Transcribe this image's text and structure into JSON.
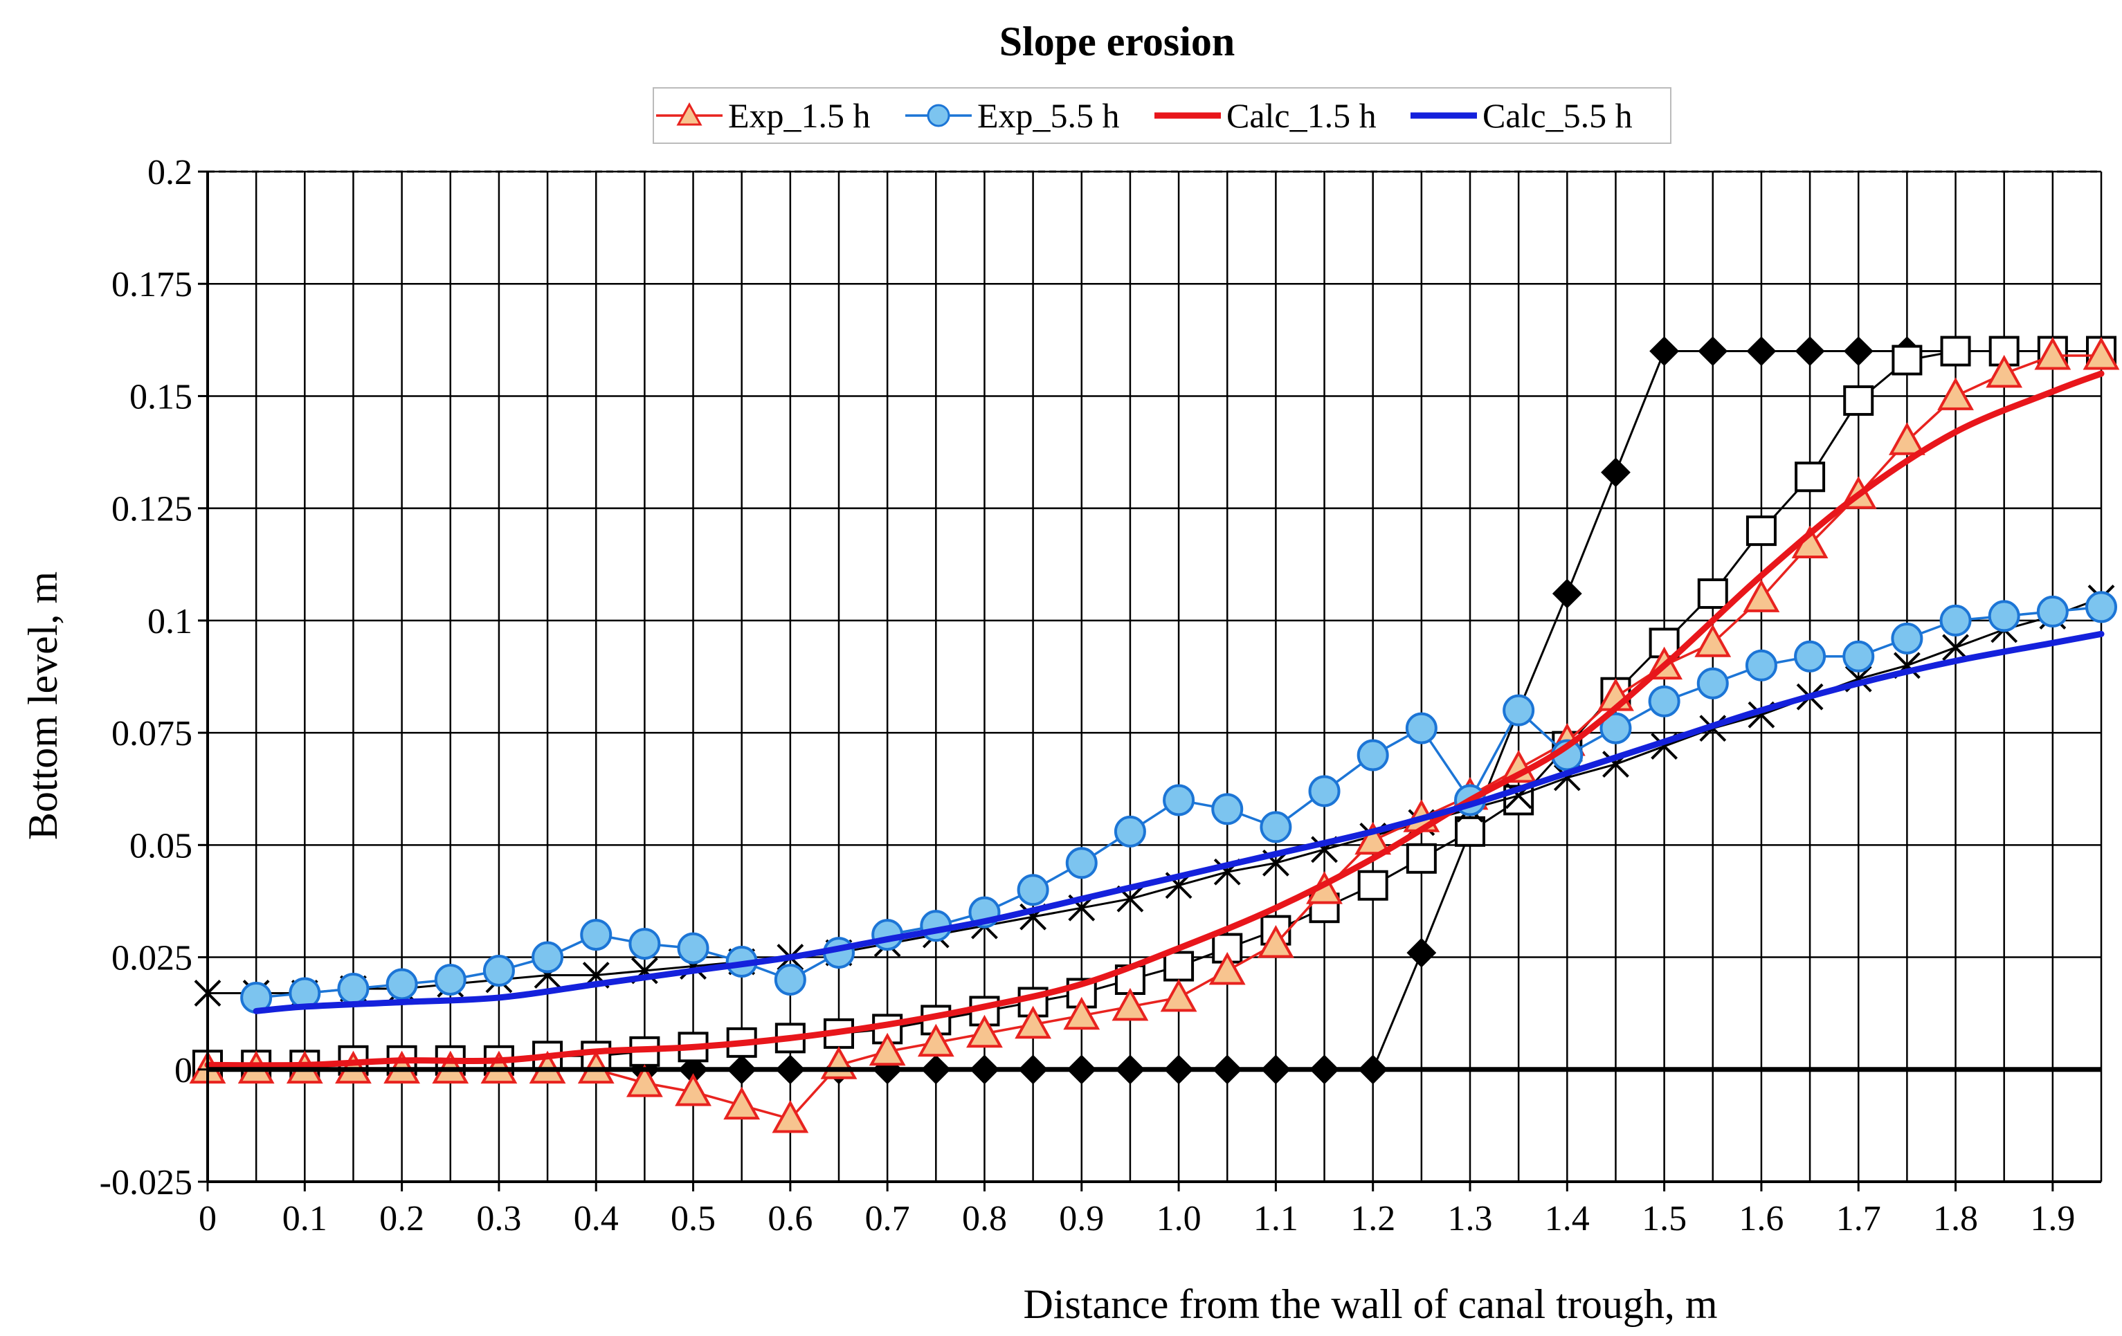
{
  "chart_data": {
    "type": "line",
    "title": "Slope erosion",
    "xlabel": "Distance from the wall of canal trough, m",
    "ylabel": "Bottom level, m",
    "xlim": [
      0,
      1.95
    ],
    "ylim": [
      -0.025,
      0.2
    ],
    "x_ticks": [
      "0",
      "0.1",
      "0.2",
      "0.3",
      "0.4",
      "0.5",
      "0.6",
      "0.7",
      "0.8",
      "0.9",
      "1.0",
      "1.1",
      "1.2",
      "1.3",
      "1.4",
      "1.5",
      "1.6",
      "1.7",
      "1.8",
      "1.9"
    ],
    "x_tick_values": [
      0,
      0.1,
      0.2,
      0.3,
      0.4,
      0.5,
      0.6,
      0.7,
      0.8,
      0.9,
      1.0,
      1.1,
      1.2,
      1.3,
      1.4,
      1.5,
      1.6,
      1.7,
      1.8,
      1.9
    ],
    "y_ticks": [
      "-0.025",
      "0",
      "0.025",
      "0.05",
      "0.075",
      "0.1",
      "0.125",
      "0.15",
      "0.175",
      "0.2"
    ],
    "y_tick_values": [
      -0.025,
      0,
      0.025,
      0.05,
      0.075,
      0.1,
      0.125,
      0.15,
      0.175,
      0.2
    ],
    "grid": true,
    "legend_position": "top",
    "series": [
      {
        "marker": "filled-diamond",
        "color": "#000000",
        "x": [
          0,
          0.05,
          0.1,
          0.15,
          0.2,
          0.25,
          0.3,
          0.35,
          0.4,
          0.45,
          0.5,
          0.55,
          0.6,
          0.65,
          0.7,
          0.75,
          0.8,
          0.85,
          0.9,
          0.95,
          1.0,
          1.05,
          1.1,
          1.15,
          1.2,
          1.25,
          1.3,
          1.35,
          1.4,
          1.45,
          1.5,
          1.55,
          1.6,
          1.65,
          1.7,
          1.75,
          1.8,
          1.85,
          1.9,
          1.95
        ],
        "y": [
          0,
          0,
          0,
          0,
          0,
          0,
          0,
          0,
          0,
          0,
          0,
          0,
          0,
          0,
          0,
          0,
          0,
          0,
          0,
          0,
          0,
          0,
          0,
          0,
          0,
          0.026,
          0.053,
          0.08,
          0.106,
          0.133,
          0.16,
          0.16,
          0.16,
          0.16,
          0.16,
          0.16,
          0.16,
          0.16,
          0.16,
          0.16
        ]
      },
      {
        "marker": "open-square",
        "color": "#000000",
        "x": [
          0,
          0.05,
          0.1,
          0.15,
          0.2,
          0.25,
          0.3,
          0.35,
          0.4,
          0.45,
          0.5,
          0.55,
          0.6,
          0.65,
          0.7,
          0.75,
          0.8,
          0.85,
          0.9,
          0.95,
          1.0,
          1.05,
          1.1,
          1.15,
          1.2,
          1.25,
          1.3,
          1.35,
          1.4,
          1.45,
          1.5,
          1.55,
          1.6,
          1.65,
          1.7,
          1.75,
          1.8,
          1.85,
          1.9,
          1.95
        ],
        "y": [
          0.001,
          0.001,
          0.001,
          0.002,
          0.002,
          0.002,
          0.002,
          0.003,
          0.003,
          0.004,
          0.005,
          0.006,
          0.007,
          0.008,
          0.009,
          0.011,
          0.013,
          0.015,
          0.017,
          0.02,
          0.023,
          0.027,
          0.031,
          0.036,
          0.041,
          0.047,
          0.053,
          0.06,
          0.072,
          0.084,
          0.095,
          0.106,
          0.12,
          0.132,
          0.149,
          0.158,
          0.16,
          0.16,
          0.16,
          0.16
        ]
      },
      {
        "marker": "x",
        "color": "#000000",
        "x": [
          0,
          0.05,
          0.1,
          0.15,
          0.2,
          0.25,
          0.3,
          0.35,
          0.4,
          0.45,
          0.5,
          0.55,
          0.6,
          0.65,
          0.7,
          0.75,
          0.8,
          0.85,
          0.9,
          0.95,
          1.0,
          1.05,
          1.1,
          1.15,
          1.2,
          1.25,
          1.3,
          1.35,
          1.4,
          1.45,
          1.5,
          1.55,
          1.6,
          1.65,
          1.7,
          1.75,
          1.8,
          1.85,
          1.9,
          1.95
        ],
        "y": [
          0.017,
          0.017,
          0.017,
          0.018,
          0.018,
          0.019,
          0.02,
          0.021,
          0.021,
          0.022,
          0.023,
          0.024,
          0.025,
          0.026,
          0.028,
          0.03,
          0.032,
          0.034,
          0.036,
          0.038,
          0.041,
          0.044,
          0.046,
          0.049,
          0.052,
          0.055,
          0.058,
          0.061,
          0.065,
          0.068,
          0.072,
          0.076,
          0.079,
          0.083,
          0.087,
          0.09,
          0.094,
          0.098,
          0.101,
          0.105
        ]
      },
      {
        "name": "Exp_1.5 h",
        "marker": "triangle",
        "color": "#e8231f",
        "fill": "#f7c48f",
        "x": [
          0,
          0.05,
          0.1,
          0.15,
          0.2,
          0.25,
          0.3,
          0.35,
          0.4,
          0.45,
          0.5,
          0.55,
          0.6,
          0.65,
          0.7,
          0.75,
          0.8,
          0.85,
          0.9,
          0.95,
          1.0,
          1.05,
          1.1,
          1.15,
          1.2,
          1.25,
          1.3,
          1.35,
          1.4,
          1.45,
          1.5,
          1.55,
          1.6,
          1.65,
          1.7,
          1.75,
          1.8,
          1.85,
          1.9,
          1.95
        ],
        "y": [
          0,
          0,
          0,
          0,
          0,
          0,
          0,
          0,
          0,
          -0.003,
          -0.005,
          -0.008,
          -0.011,
          0.001,
          0.004,
          0.006,
          0.008,
          0.01,
          0.012,
          0.014,
          0.016,
          0.022,
          0.028,
          0.04,
          0.051,
          0.056,
          0.061,
          0.067,
          0.073,
          0.083,
          0.09,
          0.095,
          0.105,
          0.117,
          0.128,
          0.14,
          0.15,
          0.155,
          0.159,
          0.159
        ]
      },
      {
        "name": "Exp_5.5 h",
        "marker": "circle",
        "color": "#1c75d6",
        "fill": "#7cc4ef",
        "x": [
          0.05,
          0.1,
          0.15,
          0.2,
          0.25,
          0.3,
          0.35,
          0.4,
          0.45,
          0.5,
          0.55,
          0.6,
          0.65,
          0.7,
          0.75,
          0.8,
          0.85,
          0.9,
          0.95,
          1.0,
          1.05,
          1.1,
          1.15,
          1.2,
          1.25,
          1.3,
          1.35,
          1.4,
          1.45,
          1.5,
          1.55,
          1.6,
          1.65,
          1.7,
          1.75,
          1.8,
          1.85,
          1.9,
          1.95
        ],
        "y": [
          0.016,
          0.017,
          0.018,
          0.019,
          0.02,
          0.022,
          0.025,
          0.03,
          0.028,
          0.027,
          0.024,
          0.02,
          0.026,
          0.03,
          0.032,
          0.035,
          0.04,
          0.046,
          0.053,
          0.06,
          0.058,
          0.054,
          0.062,
          0.07,
          0.076,
          0.06,
          0.08,
          0.07,
          0.076,
          0.082,
          0.086,
          0.09,
          0.092,
          0.092,
          0.096,
          0.1,
          0.101,
          0.102,
          0.103
        ]
      },
      {
        "name": "Calc_1.5 h",
        "marker": "none",
        "smooth": true,
        "color": "#e8161b",
        "x": [
          0,
          0.1,
          0.2,
          0.3,
          0.4,
          0.5,
          0.6,
          0.7,
          0.8,
          0.9,
          1.0,
          1.1,
          1.2,
          1.3,
          1.4,
          1.5,
          1.6,
          1.7,
          1.8,
          1.9,
          1.95
        ],
        "y": [
          0.001,
          0.001,
          0.002,
          0.002,
          0.004,
          0.005,
          0.007,
          0.01,
          0.014,
          0.019,
          0.027,
          0.036,
          0.047,
          0.06,
          0.072,
          0.09,
          0.11,
          0.128,
          0.142,
          0.151,
          0.155
        ]
      },
      {
        "name": "Calc_5.5 h",
        "marker": "none",
        "smooth": true,
        "color": "#1421dc",
        "x": [
          0.05,
          0.1,
          0.2,
          0.3,
          0.4,
          0.5,
          0.6,
          0.7,
          0.8,
          0.9,
          1.0,
          1.1,
          1.2,
          1.3,
          1.4,
          1.5,
          1.6,
          1.7,
          1.8,
          1.9,
          1.95
        ],
        "y": [
          0.013,
          0.014,
          0.015,
          0.016,
          0.019,
          0.022,
          0.025,
          0.029,
          0.033,
          0.038,
          0.043,
          0.048,
          0.053,
          0.059,
          0.066,
          0.073,
          0.08,
          0.086,
          0.091,
          0.095,
          0.097
        ]
      }
    ]
  }
}
